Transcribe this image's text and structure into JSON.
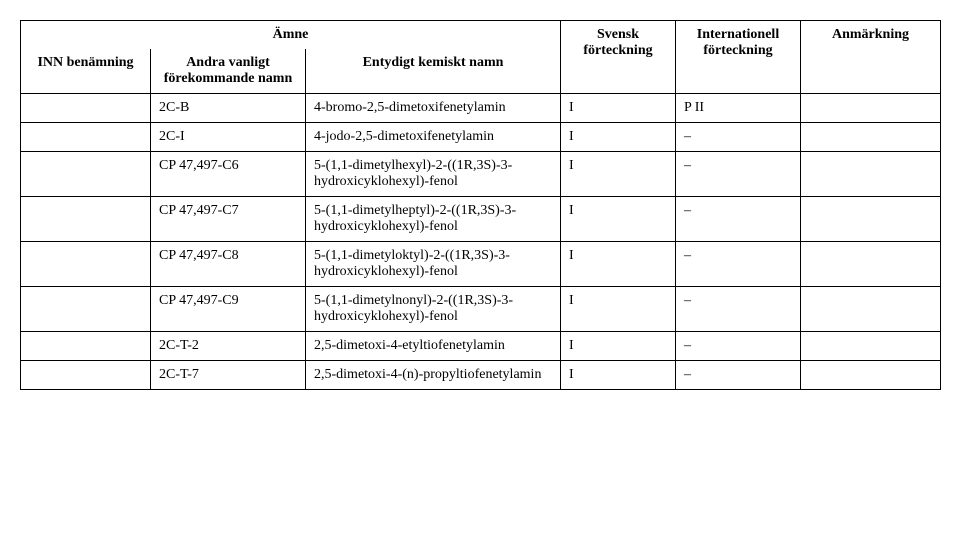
{
  "headers": {
    "amne": "Ämne",
    "inn": "INN benämning",
    "andra": "Andra vanligt förekommande namn",
    "entydigt": "Entydigt kemiskt namn",
    "svensk": "Svensk förteckning",
    "internationell": "Internationell förteckning",
    "anmarkning": "Anmärkning"
  },
  "rows": [
    {
      "c1": "",
      "c2": "2C-B",
      "c3": "4-bromo-2,5-dimetoxifenetylamin",
      "c4": "I",
      "c5": "P II",
      "c6": ""
    },
    {
      "c1": "",
      "c2": "2C-I",
      "c3": "4-jodo-2,5-dimetoxifenetylamin",
      "c4": "I",
      "c5": "–",
      "c6": ""
    },
    {
      "c1": "",
      "c2": "CP 47,497-C6",
      "c3": "5-(1,1-dimetylhexyl)-2-((1R,3S)-3-hydroxicyklohexyl)-fenol",
      "c4": "I",
      "c5": "–",
      "c6": ""
    },
    {
      "c1": "",
      "c2": "CP 47,497-C7",
      "c3": "5-(1,1-dimetylheptyl)-2-((1R,3S)-3-hydroxicyklohexyl)-fenol",
      "c4": "I",
      "c5": "–",
      "c6": ""
    },
    {
      "c1": "",
      "c2": "CP 47,497-C8",
      "c3": "5-(1,1-dimetyloktyl)-2-((1R,3S)-3-hydroxicyklohexyl)-fenol",
      "c4": "I",
      "c5": "–",
      "c6": ""
    },
    {
      "c1": "",
      "c2": "CP 47,497-C9",
      "c3": "5-(1,1-dimetylnonyl)-2-((1R,3S)-3-hydroxicyklohexyl)-fenol",
      "c4": "I",
      "c5": "–",
      "c6": ""
    },
    {
      "c1": "",
      "c2": "2C-T-2",
      "c3": "2,5-dimetoxi-4-etyltiofenetylamin",
      "c4": "I",
      "c5": "–",
      "c6": ""
    },
    {
      "c1": "",
      "c2": "2C-T-7",
      "c3": "2,5-dimetoxi-4-(n)-propyltiofenetylamin",
      "c4": "I",
      "c5": "–",
      "c6": ""
    }
  ]
}
